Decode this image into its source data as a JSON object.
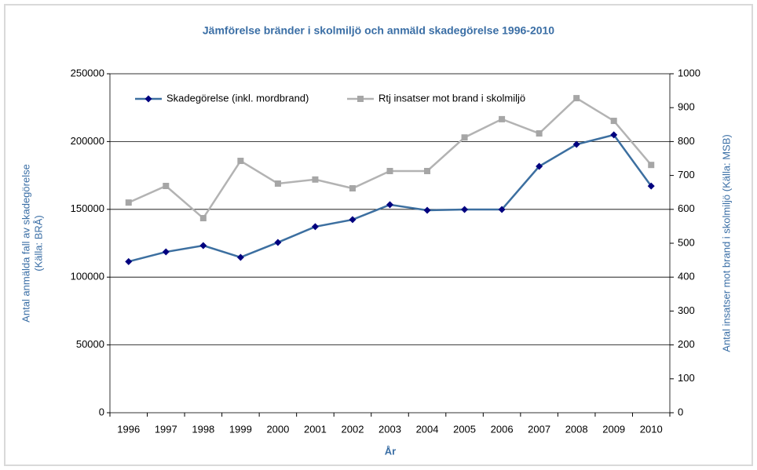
{
  "chart_data": {
    "type": "line",
    "title": "Jämförelse bränder i skolmiljö och anmäld skadegörelse 1996-2010",
    "xlabel": "År",
    "ylabel": [
      "Antal anmälda fall av skadegörelse",
      "(Källa: BRÅ)"
    ],
    "y2label": "Antal insatser mot brand i skolmiljö (Källa: MSB)",
    "categories": [
      "1996",
      "1997",
      "1998",
      "1999",
      "2000",
      "2001",
      "2002",
      "2003",
      "2004",
      "2005",
      "2006",
      "2007",
      "2008",
      "2009",
      "2010"
    ],
    "series": [
      {
        "name": "Skadegörelse (inkl. mordbrand)",
        "color": "#3c6fa0",
        "marker_color": "#00007f",
        "marker": "diamond",
        "axis": "y",
        "values": [
          111500,
          118600,
          123300,
          114600,
          125600,
          137200,
          142400,
          153400,
          149300,
          149900,
          149900,
          181700,
          197900,
          204900,
          167200
        ]
      },
      {
        "name": "Rtj insatser mot brand i skolmiljö",
        "color": "#b3b3b3",
        "marker_color": "#a6a6a6",
        "marker": "square",
        "axis": "y2",
        "values": [
          620,
          669,
          574,
          743,
          676,
          688,
          662,
          713,
          713,
          812,
          866,
          824,
          928,
          861,
          731
        ]
      }
    ],
    "ylim": [
      0,
      250000
    ],
    "yticks": [
      0,
      50000,
      100000,
      150000,
      200000,
      250000
    ],
    "y2lim": [
      0,
      1000
    ],
    "y2ticks": [
      0,
      100,
      200,
      300,
      400,
      500,
      600,
      700,
      800,
      900,
      1000
    ],
    "grid": true,
    "legend": "top"
  }
}
